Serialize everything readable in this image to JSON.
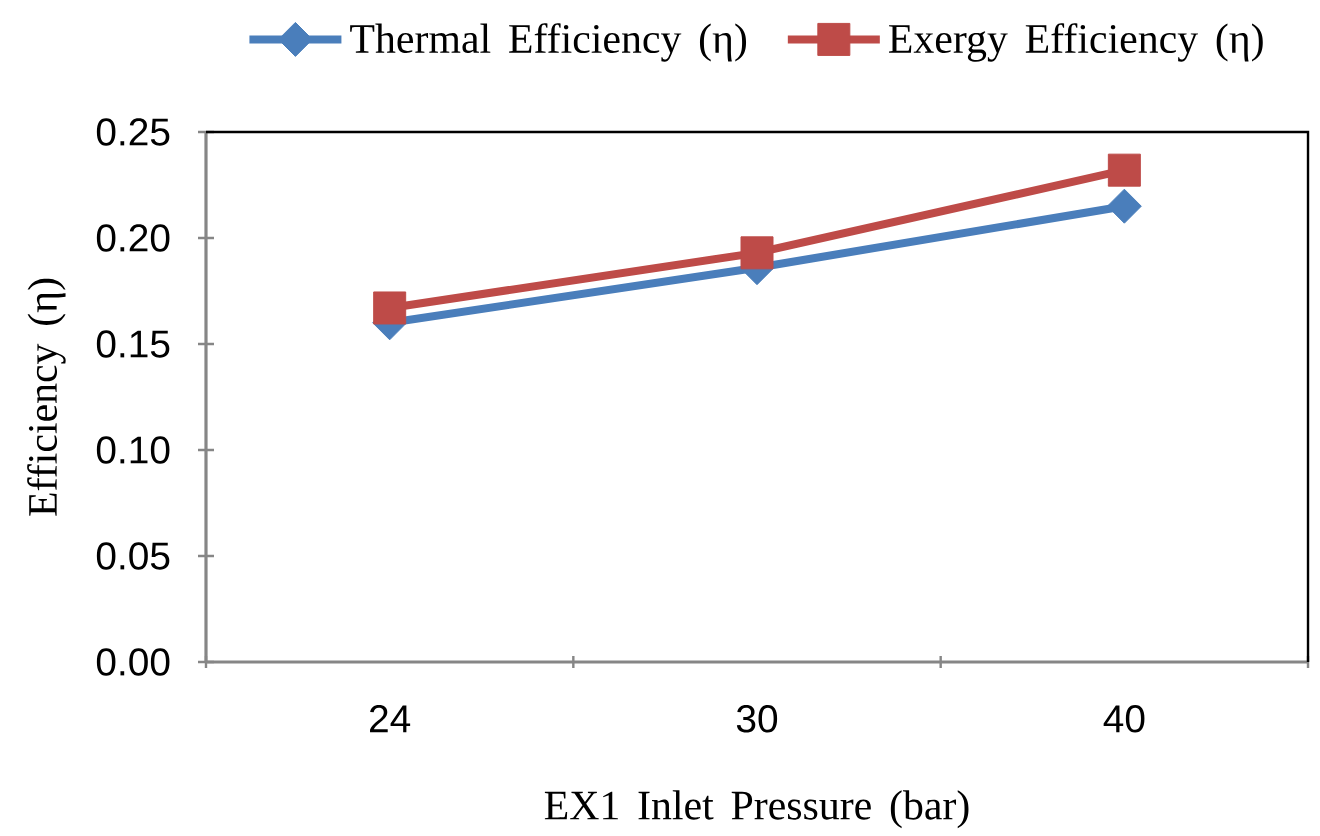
{
  "chart_data": {
    "type": "line",
    "xlabel": "EX1 Inlet Pressure (bar)",
    "ylabel": "Efficiency (η)",
    "categories": [
      "24",
      "30",
      "40"
    ],
    "series": [
      {
        "name": "Thermal Efficiency (η)",
        "color": "#4a7ebb",
        "marker": "diamond",
        "values": [
          0.16,
          0.186,
          0.215
        ]
      },
      {
        "name": "Exergy Efficiency (η)",
        "color": "#be4b48",
        "marker": "square",
        "values": [
          0.167,
          0.193,
          0.232
        ]
      }
    ],
    "ylim": [
      0,
      0.25
    ],
    "yticks": [
      {
        "value": 0,
        "label": "0.00"
      },
      {
        "value": 0.05,
        "label": "0.05"
      },
      {
        "value": 0.1,
        "label": "0.10"
      },
      {
        "value": 0.15,
        "label": "0.15"
      },
      {
        "value": 0.2,
        "label": "0.20"
      },
      {
        "value": 0.25,
        "label": "0.25"
      }
    ],
    "grid": false,
    "legend": "top",
    "line_style": "solid"
  }
}
